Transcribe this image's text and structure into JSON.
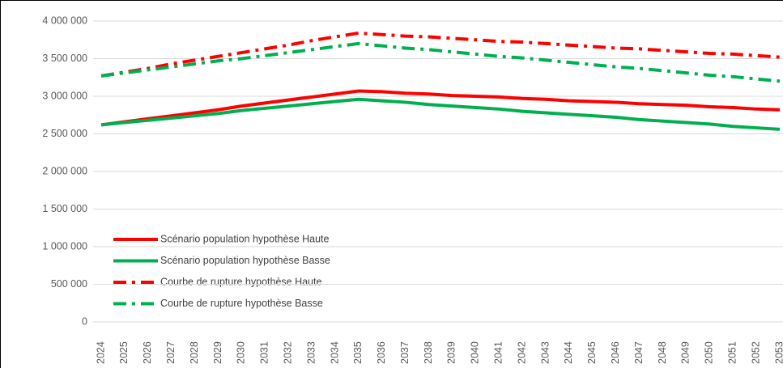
{
  "chart_data": {
    "type": "line",
    "categories": [
      "2024",
      "2025",
      "2026",
      "2027",
      "2028",
      "2029",
      "2030",
      "2031",
      "2032",
      "2033",
      "2034",
      "2035",
      "2036",
      "2037",
      "2038",
      "2039",
      "2040",
      "2041",
      "2042",
      "2043",
      "2044",
      "2045",
      "2046",
      "2047",
      "2048",
      "2049",
      "2050",
      "2051",
      "2052",
      "2053"
    ],
    "series": [
      {
        "name": "Scénario population hypothèse Haute",
        "color": "#ff0000",
        "linestyle": "solid",
        "values": [
          2620000,
          2660000,
          2700000,
          2740000,
          2780000,
          2820000,
          2870000,
          2910000,
          2950000,
          2990000,
          3030000,
          3070000,
          3060000,
          3040000,
          3030000,
          3010000,
          3000000,
          2990000,
          2970000,
          2960000,
          2940000,
          2930000,
          2920000,
          2900000,
          2890000,
          2880000,
          2860000,
          2850000,
          2830000,
          2820000
        ]
      },
      {
        "name": "Scénario population hypothèse Basse",
        "color": "#00b050",
        "linestyle": "solid",
        "values": [
          2620000,
          2650000,
          2680000,
          2710000,
          2740000,
          2770000,
          2810000,
          2840000,
          2870000,
          2900000,
          2930000,
          2960000,
          2940000,
          2920000,
          2890000,
          2870000,
          2850000,
          2830000,
          2800000,
          2780000,
          2760000,
          2740000,
          2720000,
          2690000,
          2670000,
          2650000,
          2630000,
          2600000,
          2580000,
          2560000
        ]
      },
      {
        "name": "Courbe de rupture hypothèse Haute",
        "color": "#ff0000",
        "linestyle": "dashdot",
        "values": [
          3270000,
          3320000,
          3370000,
          3430000,
          3480000,
          3530000,
          3580000,
          3630000,
          3680000,
          3740000,
          3790000,
          3840000,
          3820000,
          3800000,
          3790000,
          3770000,
          3750000,
          3730000,
          3720000,
          3700000,
          3680000,
          3660000,
          3640000,
          3630000,
          3610000,
          3590000,
          3570000,
          3560000,
          3540000,
          3520000
        ]
      },
      {
        "name": "Courbe de rupture hypothèse Basse",
        "color": "#00b050",
        "linestyle": "dashdot",
        "values": [
          3270000,
          3310000,
          3350000,
          3390000,
          3430000,
          3470000,
          3500000,
          3540000,
          3580000,
          3620000,
          3660000,
          3700000,
          3670000,
          3640000,
          3620000,
          3590000,
          3560000,
          3530000,
          3510000,
          3480000,
          3450000,
          3420000,
          3390000,
          3370000,
          3340000,
          3310000,
          3280000,
          3260000,
          3230000,
          3200000
        ]
      }
    ],
    "ylim": [
      0,
      4000000
    ],
    "yticks": [
      0,
      {
        "value": 500000,
        "label": "500 000"
      },
      {
        "value": 1000000,
        "label": "1 000 000"
      },
      {
        "value": 1500000,
        "label": "1 500 000"
      },
      {
        "value": 2000000,
        "label": "2 000 000"
      },
      {
        "value": 2500000,
        "label": "2 500 000"
      },
      {
        "value": 3000000,
        "label": "3 000 000"
      },
      {
        "value": 3500000,
        "label": "3 500 000"
      },
      {
        "value": 4000000,
        "label": "4 000 000"
      }
    ],
    "grid": true,
    "legend": "lower left"
  }
}
